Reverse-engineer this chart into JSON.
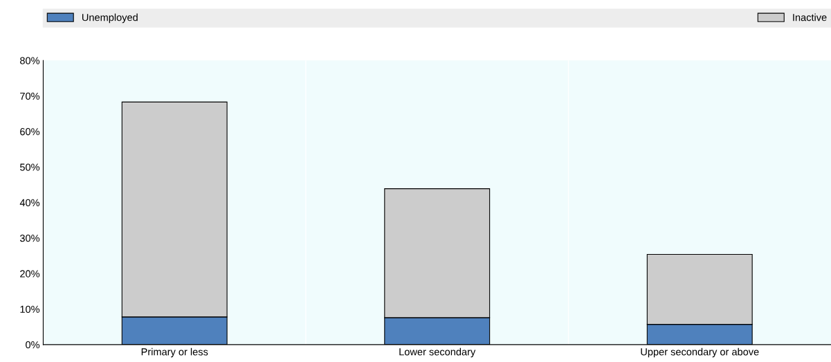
{
  "chart_data": {
    "type": "bar",
    "stacked": true,
    "categories": [
      "Primary or less",
      "Lower secondary",
      "Upper secondary or above"
    ],
    "series": [
      {
        "name": "Unemployed",
        "color": "#4f81bd",
        "values": [
          7.8,
          7.6,
          5.7
        ]
      },
      {
        "name": "Inactive",
        "color": "#cccccc",
        "values": [
          60.5,
          36.3,
          19.7
        ]
      }
    ],
    "ylim": [
      0,
      80
    ],
    "yticks": [
      {
        "value": 0,
        "label": "0%"
      },
      {
        "value": 10,
        "label": "10%"
      },
      {
        "value": 20,
        "label": "20%"
      },
      {
        "value": 30,
        "label": "30%"
      },
      {
        "value": 40,
        "label": "40%"
      },
      {
        "value": 50,
        "label": "50%"
      },
      {
        "value": 60,
        "label": "60%"
      },
      {
        "value": 70,
        "label": "70%"
      },
      {
        "value": 80,
        "label": "80%"
      }
    ],
    "legend": "top",
    "grid": false
  }
}
